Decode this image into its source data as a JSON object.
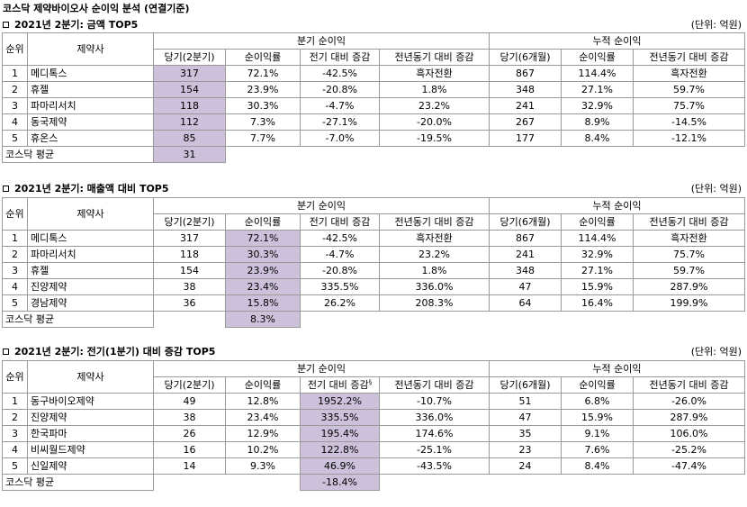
{
  "title": "코스닥 제약바이오사 순이익 분석 (연결기준)",
  "colors": {
    "highlight": "#ccc0da",
    "grid": "#9a9a9a"
  },
  "icons": {
    "section_marker": "square-outline"
  },
  "sections": [
    {
      "title": "2021년 2분기:  금액 TOP5",
      "unit": "(단위: 억원)",
      "headers": {
        "rank": "순위",
        "company": "제약사",
        "quarterly": "분기 순이익",
        "cumulative": "누적 순이익",
        "q_current": "당기(2분기)",
        "q_margin": "순이익률",
        "q_qoq": "전기 대비 증감",
        "q_yoy": "전년동기 대비 증감",
        "c_current": "당기(6개월)",
        "c_margin": "순이익률",
        "c_yoy": "전년동기 대비 증감"
      },
      "rows": [
        {
          "rank": "1",
          "company": "메디톡스",
          "q_current": "317",
          "q_margin": "72.1%",
          "q_qoq": "-42.5%",
          "q_yoy": "흑자전환",
          "c_current": "867",
          "c_margin": "114.4%",
          "c_yoy": "흑자전환"
        },
        {
          "rank": "2",
          "company": "휴젤",
          "q_current": "154",
          "q_margin": "23.9%",
          "q_qoq": "-20.8%",
          "q_yoy": "1.8%",
          "c_current": "348",
          "c_margin": "27.1%",
          "c_yoy": "59.7%"
        },
        {
          "rank": "3",
          "company": "파마리서치",
          "q_current": "118",
          "q_margin": "30.3%",
          "q_qoq": "-4.7%",
          "q_yoy": "23.2%",
          "c_current": "241",
          "c_margin": "32.9%",
          "c_yoy": "75.7%"
        },
        {
          "rank": "4",
          "company": "동국제약",
          "q_current": "112",
          "q_margin": "7.3%",
          "q_qoq": "-27.1%",
          "q_yoy": "-20.0%",
          "c_current": "267",
          "c_margin": "8.9%",
          "c_yoy": "-14.5%"
        },
        {
          "rank": "5",
          "company": "휴온스",
          "q_current": "85",
          "q_margin": "7.7%",
          "q_qoq": "-7.0%",
          "q_yoy": "-19.5%",
          "c_current": "177",
          "c_margin": "8.4%",
          "c_yoy": "-12.1%"
        }
      ],
      "average": {
        "label": "코스닥 평균",
        "value": "31"
      }
    },
    {
      "title": "2021년 2분기:  매출액 대비 TOP5",
      "unit": "(단위: 억원)",
      "headers": {
        "rank": "순위",
        "company": "제약사",
        "quarterly": "분기 순이익",
        "cumulative": "누적 순이익",
        "q_current": "당기(2분기)",
        "q_margin": "순이익률",
        "q_qoq": "전기 대비 증감",
        "q_yoy": "전년동기 대비 증감",
        "c_current": "당기(6개월)",
        "c_margin": "순이익률",
        "c_yoy": "전년동기 대비 증감"
      },
      "rows": [
        {
          "rank": "1",
          "company": "메디톡스",
          "q_current": "317",
          "q_margin": "72.1%",
          "q_qoq": "-42.5%",
          "q_yoy": "흑자전환",
          "c_current": "867",
          "c_margin": "114.4%",
          "c_yoy": "흑자전환"
        },
        {
          "rank": "2",
          "company": "파마리서치",
          "q_current": "118",
          "q_margin": "30.3%",
          "q_qoq": "-4.7%",
          "q_yoy": "23.2%",
          "c_current": "241",
          "c_margin": "32.9%",
          "c_yoy": "75.7%"
        },
        {
          "rank": "3",
          "company": "휴젤",
          "q_current": "154",
          "q_margin": "23.9%",
          "q_qoq": "-20.8%",
          "q_yoy": "1.8%",
          "c_current": "348",
          "c_margin": "27.1%",
          "c_yoy": "59.7%"
        },
        {
          "rank": "4",
          "company": "진양제약",
          "q_current": "38",
          "q_margin": "23.4%",
          "q_qoq": "335.5%",
          "q_yoy": "336.0%",
          "c_current": "47",
          "c_margin": "15.9%",
          "c_yoy": "287.9%"
        },
        {
          "rank": "5",
          "company": "경남제약",
          "q_current": "36",
          "q_margin": "15.8%",
          "q_qoq": "26.2%",
          "q_yoy": "208.3%",
          "c_current": "64",
          "c_margin": "16.4%",
          "c_yoy": "199.9%"
        }
      ],
      "average": {
        "label": "코스닥 평균",
        "value": "8.3%"
      }
    },
    {
      "title": "2021년 2분기:  전기(1분기) 대비 증감 TOP5",
      "unit": "(단위: 억원)",
      "headers": {
        "rank": "순위",
        "company": "제약사",
        "quarterly": "분기 순이익",
        "cumulative": "누적 순이익",
        "q_current": "당기(2분기)",
        "q_margin": "순이익률",
        "q_qoq": "전기 대비 증감",
        "q_qoq_sup": "§",
        "q_yoy": "전년동기 대비 증감",
        "c_current": "당기(6개월)",
        "c_margin": "순이익률",
        "c_yoy": "전년동기 대비 증감"
      },
      "rows": [
        {
          "rank": "1",
          "company": "동구바이오제약",
          "q_current": "49",
          "q_margin": "12.8%",
          "q_qoq": "1952.2%",
          "q_yoy": "-10.7%",
          "c_current": "51",
          "c_margin": "6.8%",
          "c_yoy": "-26.0%"
        },
        {
          "rank": "2",
          "company": "진양제약",
          "q_current": "38",
          "q_margin": "23.4%",
          "q_qoq": "335.5%",
          "q_yoy": "336.0%",
          "c_current": "47",
          "c_margin": "15.9%",
          "c_yoy": "287.9%"
        },
        {
          "rank": "3",
          "company": "한국파마",
          "q_current": "26",
          "q_margin": "12.9%",
          "q_qoq": "195.4%",
          "q_yoy": "174.6%",
          "c_current": "35",
          "c_margin": "9.1%",
          "c_yoy": "106.0%"
        },
        {
          "rank": "4",
          "company": "비씨월드제약",
          "q_current": "16",
          "q_margin": "10.2%",
          "q_qoq": "122.8%",
          "q_yoy": "-25.1%",
          "c_current": "23",
          "c_margin": "7.6%",
          "c_yoy": "-25.2%"
        },
        {
          "rank": "5",
          "company": "신일제약",
          "q_current": "14",
          "q_margin": "9.3%",
          "q_qoq": "46.9%",
          "q_yoy": "-43.5%",
          "c_current": "24",
          "c_margin": "8.4%",
          "c_yoy": "-47.4%"
        }
      ],
      "average": {
        "label": "코스닥 평균",
        "value": "-18.4%"
      }
    }
  ]
}
